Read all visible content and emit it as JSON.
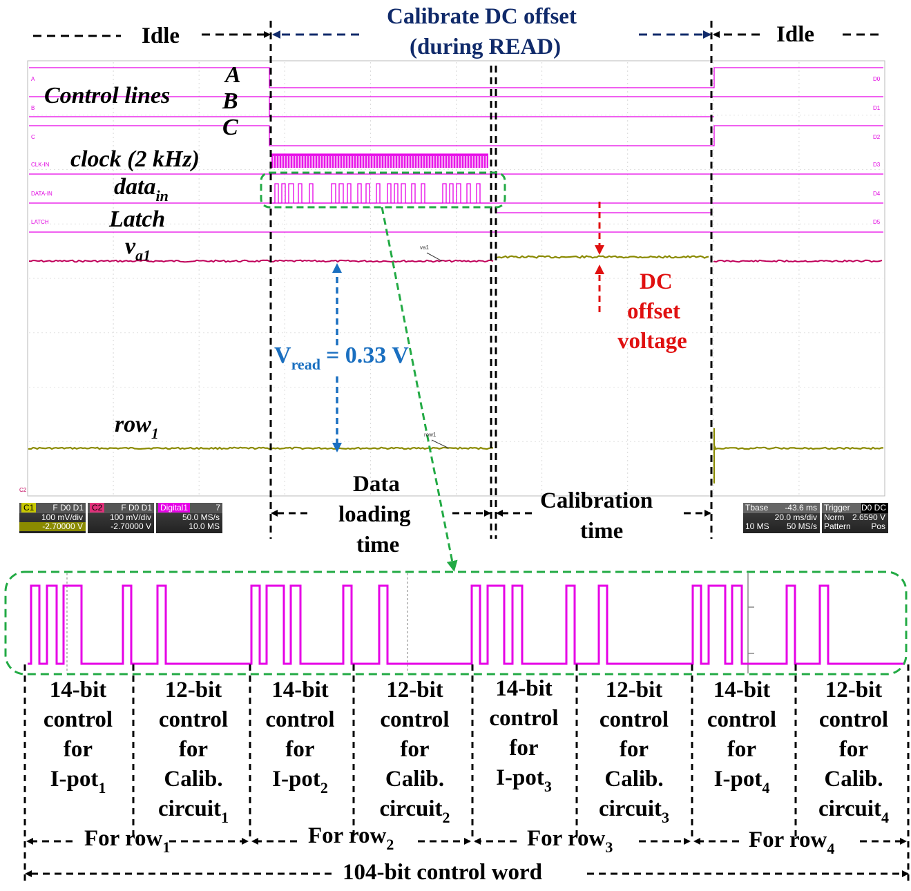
{
  "header": {
    "idle_left": "Idle",
    "idle_right": "Idle",
    "calibrate_line1": "Calibrate DC offset",
    "calibrate_line2": "(during READ)"
  },
  "signals": {
    "control_lines": "Control lines",
    "a": "A",
    "b": "B",
    "c": "C",
    "clock": "clock (2 kHz)",
    "data_in_main": "data",
    "data_in_sub": "in",
    "latch": "Latch",
    "va1_main": "v",
    "va1_sub": "a1",
    "row1_main": "row",
    "row1_sub": "1"
  },
  "scope_channel_tags": {
    "left": [
      "A",
      "B",
      "C",
      "CLK-IN",
      "DATA-IN",
      "LATCH"
    ],
    "right": [
      "D0",
      "D1",
      "D2",
      "D3",
      "D4",
      "D5"
    ],
    "va1_marker": "va1",
    "row1_marker": "row1",
    "c2_marker": "C2"
  },
  "annotations": {
    "vread_main": "V",
    "vread_sub": "read",
    "vread_value": "= 0.33 V",
    "dc_offset_line1": "DC",
    "dc_offset_line2": "offset",
    "dc_offset_line3": "voltage",
    "data_loading_line1": "Data",
    "data_loading_line2": "loading",
    "data_loading_line3": "time",
    "calibration_line1": "Calibration",
    "calibration_line2": "time"
  },
  "scope_panels": {
    "c1": {
      "tag": "C1",
      "flags": "F D0 D1",
      "vdiv": "100 mV/div",
      "offset": "-2.70000 V"
    },
    "c2": {
      "tag": "C2",
      "flags": "F D0 D1",
      "vdiv": "100 mV/div",
      "offset": "-2.70000 V"
    },
    "digital": {
      "tag": "Digital1",
      "flags": "7",
      "rate": "50.0 MS/s",
      "samples": "10.0 MS"
    },
    "tbase": {
      "tag": "Tbase",
      "value": "-43.6 ms",
      "div": "20.0 ms/div",
      "samples": "10 MS",
      "rate": "50 MS/s"
    },
    "trigger": {
      "tag": "Trigger",
      "flags": "D0 DC",
      "mode": "Norm",
      "level": "2.6590 V",
      "type": "Pattern",
      "slope": "Pos"
    }
  },
  "segments": [
    {
      "line1": "14-bit",
      "line2": "control",
      "line3": "for",
      "line4": "I-pot",
      "sub": "1"
    },
    {
      "line1": "12-bit",
      "line2": "control",
      "line3": "for",
      "line4": "Calib.",
      "line5": "circuit",
      "sub": "1"
    },
    {
      "line1": "14-bit",
      "line2": "control",
      "line3": "for",
      "line4": "I-pot",
      "sub": "2"
    },
    {
      "line1": "12-bit",
      "line2": "control",
      "line3": "for",
      "line4": "Calib.",
      "line5": "circuit",
      "sub": "2"
    },
    {
      "line1": "14-bit",
      "line2": "control",
      "line3": "for",
      "line4": "I-pot",
      "sub": "3"
    },
    {
      "line1": "12-bit",
      "line2": "control",
      "line3": "for",
      "line4": "Calib.",
      "line5": "circuit",
      "sub": "3"
    },
    {
      "line1": "14-bit",
      "line2": "control",
      "line3": "for",
      "line4": "I-pot",
      "sub": "4"
    },
    {
      "line1": "12-bit",
      "line2": "control",
      "line3": "for",
      "line4": "Calib.",
      "line5": "circuit",
      "sub": "4"
    }
  ],
  "rows": [
    {
      "label": "For row",
      "sub": "1"
    },
    {
      "label": "For row",
      "sub": "2"
    },
    {
      "label": "For row",
      "sub": "3"
    },
    {
      "label": "For row",
      "sub": "4"
    }
  ],
  "control_word": "104-bit control word",
  "colors": {
    "digital_trace": "#e600e6",
    "analog_va1": "#c0005a",
    "analog_row1": "#8a8a00",
    "annotation_blue": "#1a6fc0",
    "annotation_red": "#e01010",
    "header_navy": "#102a6a",
    "zoom_box": "#22aa44"
  }
}
